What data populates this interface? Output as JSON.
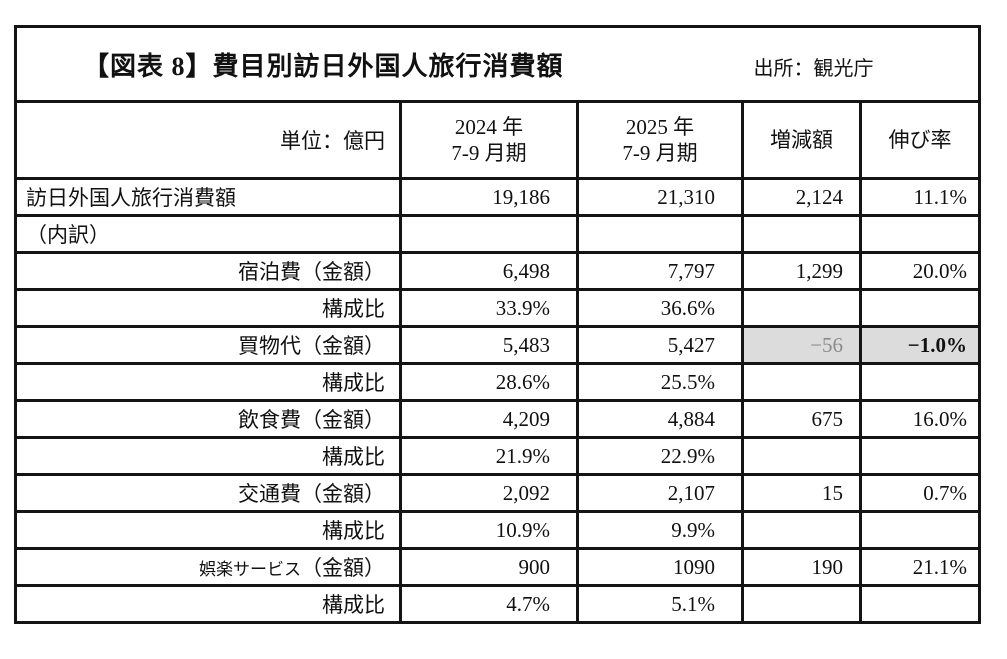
{
  "figure": {
    "title": "【図表 8】費目別訪日外国人旅行消費額",
    "source": "出所：観光庁"
  },
  "table": {
    "unit_label": "単位：億円",
    "headers": {
      "col_2024": {
        "line1": "2024 年",
        "line2": "7-9 月期"
      },
      "col_2025": {
        "line1": "2025 年",
        "line2": "7-9 月期"
      },
      "col_change": "増減額",
      "col_growth": "伸び率"
    },
    "rows": [
      {
        "label": "訪日外国人旅行消費額",
        "align": "left",
        "values": [
          "19,186",
          "21,310",
          "2,124",
          "11.1%"
        ]
      },
      {
        "label": "（内訳）",
        "align": "left",
        "values": [
          "",
          "",
          "",
          ""
        ]
      },
      {
        "label": "宿泊費（金額）",
        "align": "right",
        "values": [
          "6,498",
          "7,797",
          "1,299",
          "20.0%"
        ]
      },
      {
        "label": "構成比",
        "align": "right",
        "values": [
          "33.9%",
          "36.6%",
          "",
          ""
        ]
      },
      {
        "label": "買物代（金額）",
        "align": "right",
        "values": [
          "5,483",
          "5,427",
          "−56",
          "−1.0%"
        ],
        "highlight": [
          2,
          3
        ],
        "muted": 2,
        "bold": 3
      },
      {
        "label": "構成比",
        "align": "right",
        "values": [
          "28.6%",
          "25.5%",
          "",
          ""
        ]
      },
      {
        "label": "飲食費（金額）",
        "align": "right",
        "values": [
          "4,209",
          "4,884",
          "675",
          "16.0%"
        ]
      },
      {
        "label": "構成比",
        "align": "right",
        "values": [
          "21.9%",
          "22.9%",
          "",
          ""
        ]
      },
      {
        "label": "交通費（金額）",
        "align": "right",
        "values": [
          "2,092",
          "2,107",
          "15",
          "0.7%"
        ]
      },
      {
        "label": "構成比",
        "align": "right",
        "values": [
          "10.9%",
          "9.9%",
          "",
          ""
        ]
      },
      {
        "label": "娯楽サービス（金額）",
        "align": "right",
        "values": [
          "900",
          "1090",
          "190",
          "21.1%"
        ],
        "label_small": "娯楽サービス",
        "label_rest": "（金額）"
      },
      {
        "label": "構成比",
        "align": "right",
        "values": [
          "4.7%",
          "5.1%",
          "",
          ""
        ]
      }
    ],
    "colors": {
      "highlight_bg": "#dcdcdc",
      "muted_text": "#8a8a8a",
      "border": "#141414"
    }
  },
  "chart_data": {
    "type": "table",
    "title": "【図表8】費目別訪日外国人旅行消費額",
    "source": "観光庁",
    "unit": "億円",
    "columns": [
      "2024年7-9月期",
      "2025年7-9月期",
      "増減額",
      "伸び率"
    ],
    "rows": [
      {
        "item": "訪日外国人旅行消費額",
        "v2024": 19186,
        "v2025": 21310,
        "change": 2124,
        "growth_pct": 11.1
      },
      {
        "item": "宿泊費",
        "v2024": 6498,
        "v2025": 7797,
        "change": 1299,
        "growth_pct": 20.0,
        "share_2024_pct": 33.9,
        "share_2025_pct": 36.6
      },
      {
        "item": "買物代",
        "v2024": 5483,
        "v2025": 5427,
        "change": -56,
        "growth_pct": -1.0,
        "share_2024_pct": 28.6,
        "share_2025_pct": 25.5,
        "highlighted": true
      },
      {
        "item": "飲食費",
        "v2024": 4209,
        "v2025": 4884,
        "change": 675,
        "growth_pct": 16.0,
        "share_2024_pct": 21.9,
        "share_2025_pct": 22.9
      },
      {
        "item": "交通費",
        "v2024": 2092,
        "v2025": 2107,
        "change": 15,
        "growth_pct": 0.7,
        "share_2024_pct": 10.9,
        "share_2025_pct": 9.9
      },
      {
        "item": "娯楽サービス",
        "v2024": 900,
        "v2025": 1090,
        "change": 190,
        "growth_pct": 21.1,
        "share_2024_pct": 4.7,
        "share_2025_pct": 5.1
      }
    ]
  }
}
